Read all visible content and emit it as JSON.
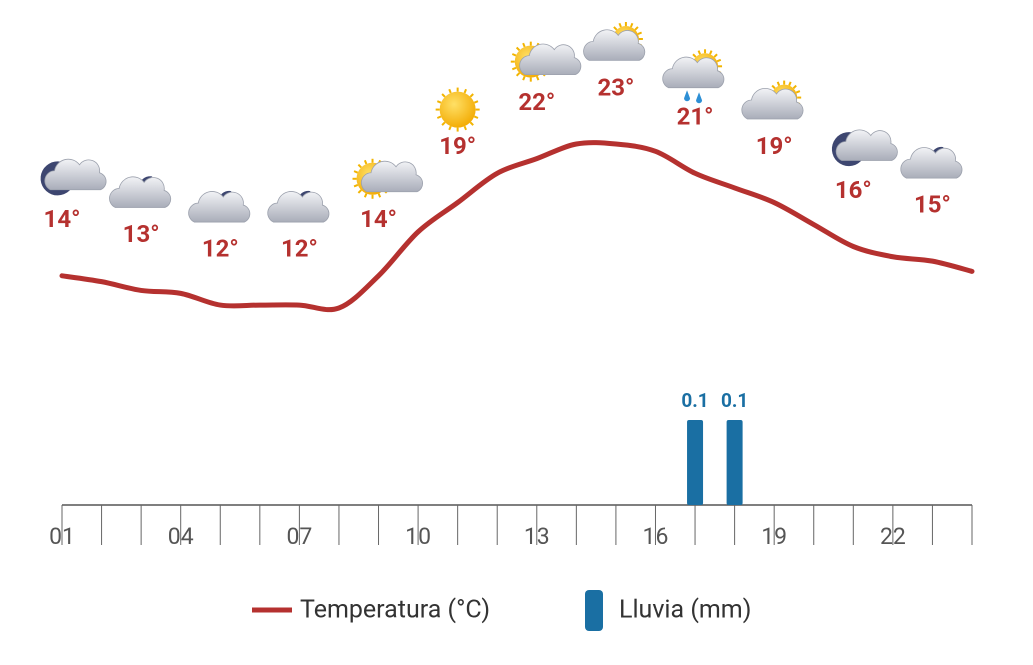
{
  "chart_data": {
    "type": "line-bar",
    "categories": [
      "01",
      null,
      null,
      "04",
      null,
      null,
      "07",
      null,
      null,
      "10",
      null,
      null,
      "13",
      null,
      null,
      "16",
      null,
      null,
      "19",
      null,
      null,
      "22",
      null,
      null
    ],
    "series": [
      {
        "name": "Temperatura (°C)",
        "color": "#b5312f",
        "type": "line",
        "values": [
          14,
          13.6,
          13,
          12.8,
          12,
          12,
          12,
          11.8,
          14,
          17,
          19,
          21,
          22,
          23,
          23,
          22.5,
          21,
          20,
          19,
          17.5,
          16,
          15.3,
          15,
          14.3
        ],
        "value_labels": [
          "14°",
          null,
          "13°",
          null,
          "12°",
          null,
          "12°",
          null,
          "14°",
          null,
          "19°",
          null,
          "22°",
          null,
          "23°",
          null,
          "21°",
          null,
          "19°",
          null,
          "16°",
          null,
          "15°",
          null
        ]
      },
      {
        "name": "Lluvia (mm)",
        "color": "#1a6fa3",
        "type": "bar",
        "values": [
          0,
          0,
          0,
          0,
          0,
          0,
          0,
          0,
          0,
          0,
          0,
          0,
          0,
          0,
          0,
          0,
          0.1,
          0.1,
          0,
          0,
          0,
          0,
          0,
          0
        ],
        "value_labels": [
          null,
          null,
          null,
          null,
          null,
          null,
          null,
          null,
          null,
          null,
          null,
          null,
          null,
          null,
          null,
          null,
          "0.1",
          "0.1",
          null,
          null,
          null,
          null,
          null,
          null
        ]
      }
    ]
  }
}
